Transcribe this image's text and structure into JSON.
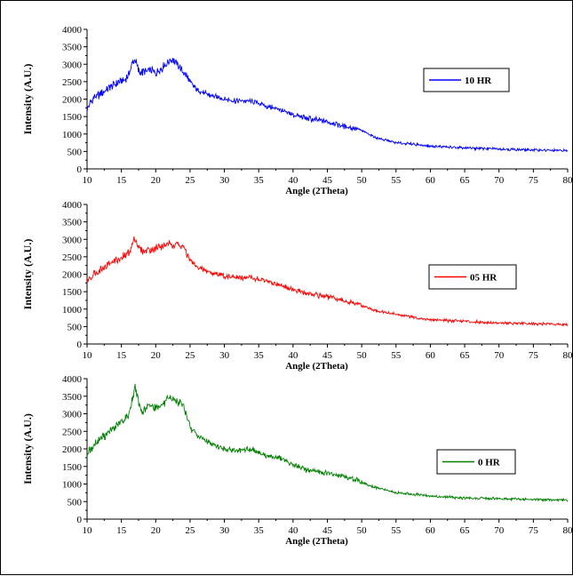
{
  "chart_data": [
    {
      "type": "line",
      "xlabel": "Angle (2Theta)",
      "ylabel": "Intensity (A.U.)",
      "xlim": [
        10,
        80
      ],
      "ylim": [
        0,
        4000
      ],
      "xticks": [
        "10",
        "15",
        "20",
        "25",
        "30",
        "35",
        "40",
        "45",
        "50",
        "55",
        "60",
        "65",
        "70",
        "75",
        "80"
      ],
      "yticks": [
        "0",
        "500",
        "1000",
        "1500",
        "2000",
        "2500",
        "3000",
        "3500",
        "4000"
      ],
      "legend_position": "right",
      "series": [
        {
          "name": "10 HR",
          "color": "#0000ff",
          "x": [
            10,
            11,
            12,
            13,
            14,
            15,
            16,
            16.5,
            17,
            17.5,
            18,
            19,
            20,
            21,
            22,
            22.5,
            23,
            24,
            25,
            26,
            28,
            30,
            32,
            34,
            36,
            38,
            40,
            42,
            45,
            48,
            50,
            52,
            55,
            58,
            60,
            65,
            70,
            75,
            80
          ],
          "y": [
            1700,
            2050,
            2150,
            2300,
            2450,
            2500,
            2650,
            3000,
            3150,
            2800,
            2750,
            2850,
            2750,
            2900,
            3100,
            3150,
            3000,
            2800,
            2500,
            2250,
            2100,
            2000,
            1950,
            1950,
            1800,
            1700,
            1550,
            1450,
            1350,
            1200,
            1100,
            900,
            750,
            700,
            650,
            600,
            570,
            540,
            520
          ]
        },
        {
          "name": "05 HR",
          "color": "#ff0000",
          "x": [
            10,
            11,
            12,
            13,
            14,
            15,
            16,
            16.5,
            17,
            17.5,
            18,
            19,
            20,
            21,
            22,
            23,
            24,
            25,
            26,
            28,
            30,
            32,
            34,
            36,
            38,
            40,
            42,
            45,
            48,
            50,
            52,
            55,
            58,
            60,
            65,
            70,
            75,
            80
          ],
          "y": [
            1800,
            2000,
            2150,
            2250,
            2400,
            2450,
            2600,
            2800,
            3050,
            2750,
            2650,
            2700,
            2750,
            2800,
            2850,
            2850,
            2800,
            2400,
            2200,
            2050,
            1950,
            1900,
            1900,
            1800,
            1700,
            1550,
            1450,
            1350,
            1200,
            1100,
            950,
            850,
            750,
            700,
            650,
            600,
            580,
            560
          ]
        },
        {
          "name": "0 HR",
          "color": "#008000",
          "x": [
            10,
            11,
            12,
            13,
            14,
            15,
            16,
            16.5,
            17,
            17.5,
            18,
            19,
            20,
            21,
            22,
            22.5,
            23,
            24,
            25,
            26,
            28,
            30,
            32,
            34,
            36,
            38,
            40,
            42,
            45,
            48,
            50,
            52,
            55,
            58,
            60,
            65,
            70,
            75,
            80
          ],
          "y": [
            1850,
            2100,
            2300,
            2450,
            2600,
            2750,
            2950,
            3300,
            3800,
            3300,
            3050,
            3250,
            3200,
            3250,
            3450,
            3450,
            3350,
            3250,
            2600,
            2400,
            2150,
            2000,
            1950,
            2000,
            1800,
            1750,
            1550,
            1400,
            1300,
            1200,
            1050,
            900,
            750,
            700,
            650,
            600,
            580,
            560,
            540
          ]
        }
      ]
    }
  ]
}
